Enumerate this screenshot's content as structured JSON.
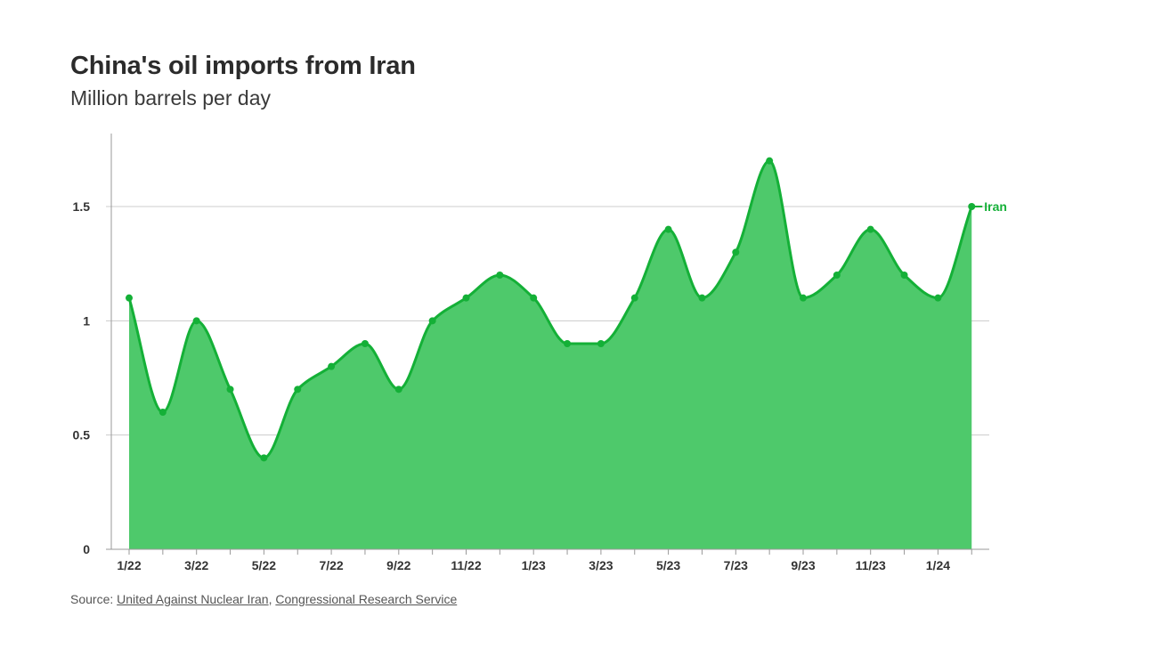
{
  "header": {
    "title": "China's oil imports from Iran",
    "subtitle": "Million barrels per day"
  },
  "source": {
    "prefix": "Source: ",
    "links": [
      "United Against Nuclear Iran",
      "Congressional Research Service"
    ],
    "separator": ", "
  },
  "colors": {
    "line": "#14b037",
    "fill": "#4ec96b",
    "grid": "#cccccc",
    "axis": "#999999"
  },
  "chart_data": {
    "type": "area",
    "title": "China's oil imports from Iran",
    "subtitle": "Million barrels per day",
    "x": [
      "1/22",
      "2/22",
      "3/22",
      "4/22",
      "5/22",
      "6/22",
      "7/22",
      "8/22",
      "9/22",
      "10/22",
      "11/22",
      "12/22",
      "1/23",
      "2/23",
      "3/23",
      "4/23",
      "5/23",
      "6/23",
      "7/23",
      "8/23",
      "9/23",
      "10/23",
      "11/23",
      "12/23",
      "1/24",
      "2/24"
    ],
    "x_tick_labels": [
      "1/22",
      "3/22",
      "5/22",
      "7/22",
      "9/22",
      "11/22",
      "1/23",
      "3/23",
      "5/23",
      "7/23",
      "9/23",
      "11/23",
      "1/24"
    ],
    "series": [
      {
        "name": "Iran",
        "values": [
          1.1,
          0.6,
          1.0,
          0.7,
          0.4,
          0.7,
          0.8,
          0.9,
          0.7,
          1.0,
          1.1,
          1.2,
          1.1,
          0.9,
          0.9,
          1.1,
          1.4,
          1.1,
          1.3,
          1.7,
          1.1,
          1.2,
          1.4,
          1.2,
          1.1,
          1.5
        ]
      }
    ],
    "y_ticks": [
      0,
      0.5,
      1,
      1.5
    ],
    "y_tick_labels": [
      "0",
      "0.5",
      "1",
      "1.5"
    ],
    "ylim": [
      0,
      1.8
    ],
    "grid": true,
    "legend": "end-of-line label"
  }
}
